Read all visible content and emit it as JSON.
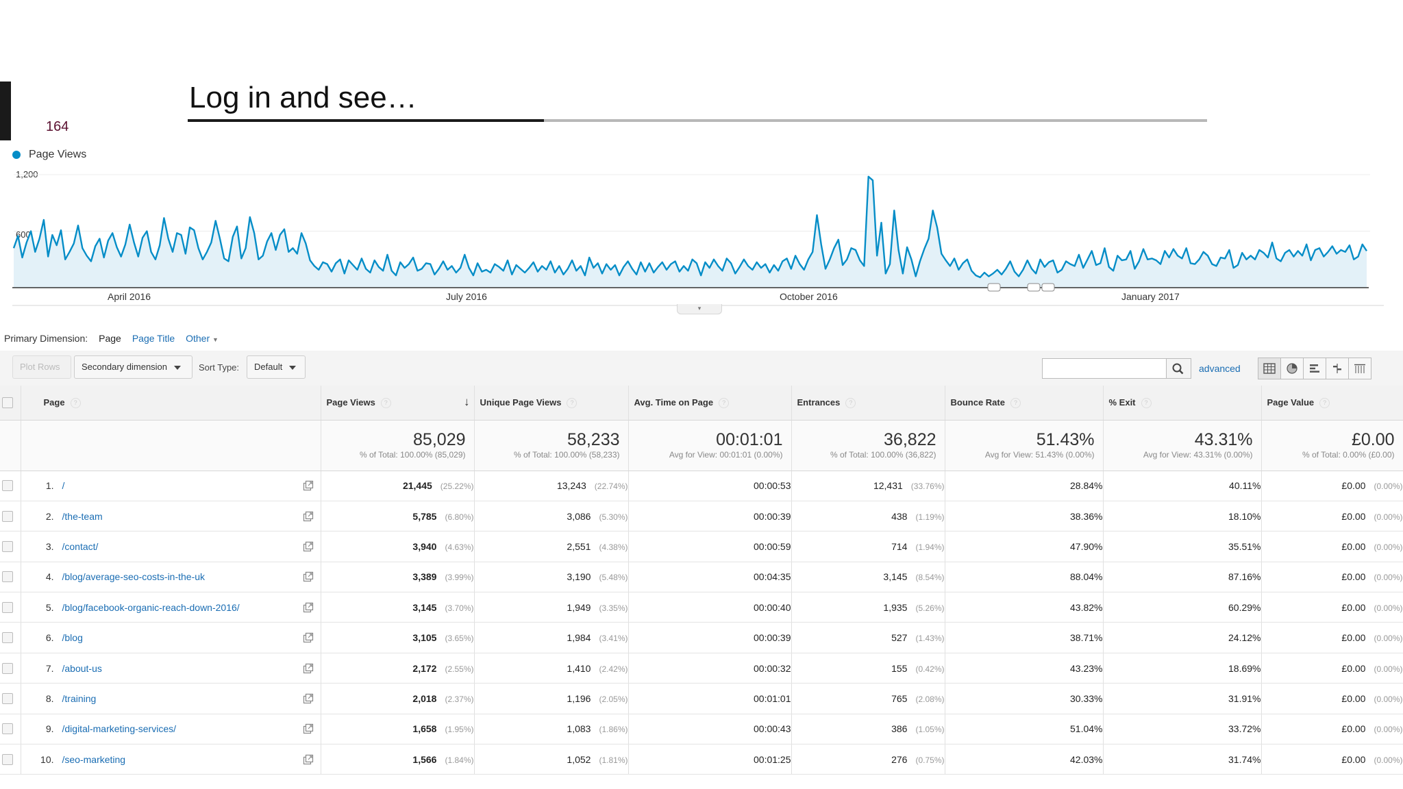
{
  "slide": {
    "number": "164",
    "title": "Log in and see…"
  },
  "chart_data": {
    "type": "line",
    "legend": [
      "Page Views"
    ],
    "series": [
      {
        "name": "Page Views",
        "color": "#058dc7",
        "values": [
          420,
          550,
          320,
          480,
          600,
          380,
          520,
          720,
          330,
          560,
          450,
          610,
          300,
          380,
          470,
          660,
          420,
          340,
          280,
          440,
          520,
          320,
          500,
          580,
          430,
          330,
          460,
          670,
          480,
          330,
          530,
          600,
          380,
          300,
          450,
          740,
          520,
          380,
          580,
          560,
          360,
          640,
          610,
          420,
          300,
          380,
          480,
          710,
          520,
          310,
          280,
          540,
          650,
          310,
          420,
          750,
          580,
          300,
          340,
          490,
          580,
          400,
          560,
          620,
          380,
          420,
          360,
          580,
          470,
          290,
          230,
          190,
          270,
          250,
          170,
          260,
          300,
          150,
          290,
          240,
          190,
          310,
          200,
          160,
          290,
          220,
          180,
          350,
          180,
          130,
          270,
          210,
          250,
          320,
          180,
          200,
          260,
          250,
          140,
          200,
          280,
          190,
          230,
          160,
          210,
          350,
          210,
          130,
          260,
          170,
          190,
          160,
          250,
          220,
          180,
          290,
          140,
          240,
          200,
          160,
          210,
          270,
          170,
          230,
          190,
          280,
          160,
          230,
          140,
          200,
          290,
          180,
          230,
          130,
          320,
          210,
          260,
          150,
          250,
          190,
          240,
          130,
          220,
          280,
          200,
          140,
          270,
          170,
          260,
          160,
          220,
          270,
          190,
          250,
          280,
          170,
          230,
          180,
          300,
          260,
          130,
          270,
          210,
          300,
          230,
          180,
          310,
          260,
          150,
          220,
          300,
          230,
          190,
          270,
          210,
          250,
          160,
          240,
          180,
          280,
          310,
          200,
          340,
          250,
          190,
          300,
          380,
          770,
          460,
          200,
          300,
          420,
          510,
          240,
          300,
          420,
          400,
          290,
          230,
          1180,
          1140,
          340,
          690,
          150,
          250,
          820,
          400,
          150,
          430,
          300,
          120,
          280,
          410,
          520,
          820,
          640,
          360,
          290,
          230,
          310,
          190,
          260,
          300,
          180,
          130,
          110,
          160,
          120,
          150,
          190,
          140,
          200,
          280,
          170,
          120,
          190,
          290,
          200,
          150,
          300,
          220,
          270,
          290,
          160,
          190,
          280,
          250,
          230,
          350,
          210,
          300,
          390,
          240,
          260,
          420,
          220,
          180,
          340,
          290,
          300,
          390,
          200,
          280,
          410,
          300,
          310,
          290,
          250,
          390,
          320,
          410,
          340,
          310,
          420,
          260,
          250,
          300,
          380,
          340,
          250,
          230,
          320,
          310,
          400,
          210,
          240,
          370,
          300,
          340,
          300,
          400,
          370,
          320,
          480,
          310,
          280,
          370,
          400,
          330,
          390,
          340,
          460,
          290,
          400,
          420,
          330,
          380,
          440,
          360,
          400,
          380,
          450,
          300,
          330,
          460,
          390
        ]
      }
    ],
    "ylim": [
      0,
      1200
    ],
    "yticks": [
      "1,200",
      "600"
    ],
    "xticks": [
      "April 2016",
      "July 2016",
      "October 2016",
      "January 2017"
    ],
    "grid": true
  },
  "controls": {
    "primary_dimension_label": "Primary Dimension:",
    "primary_page": "Page",
    "primary_page_title": "Page Title",
    "primary_other": "Other",
    "plot_rows": "Plot Rows",
    "secondary_dimension": "Secondary dimension",
    "sort_type_label": "Sort Type:",
    "sort_type_value": "Default",
    "search_placeholder": "",
    "advanced": "advanced"
  },
  "table": {
    "headers": {
      "page": "Page",
      "page_views": "Page Views",
      "unique_page_views": "Unique Page Views",
      "avg_time": "Avg. Time on Page",
      "entrances": "Entrances",
      "bounce_rate": "Bounce Rate",
      "exit": "% Exit",
      "page_value": "Page Value"
    },
    "help_mark": "?",
    "sort_arrow": "↓",
    "totals": {
      "page_views": {
        "value": "85,029",
        "sub": "% of Total: 100.00% (85,029)"
      },
      "unique_page_views": {
        "value": "58,233",
        "sub": "% of Total: 100.00% (58,233)"
      },
      "avg_time": {
        "value": "00:01:01",
        "sub": "Avg for View: 00:01:01 (0.00%)"
      },
      "entrances": {
        "value": "36,822",
        "sub": "% of Total: 100.00% (36,822)"
      },
      "bounce_rate": {
        "value": "51.43%",
        "sub": "Avg for View: 51.43% (0.00%)"
      },
      "exit": {
        "value": "43.31%",
        "sub": "Avg for View: 43.31% (0.00%)"
      },
      "page_value": {
        "value": "£0.00",
        "sub": "% of Total: 0.00% (£0.00)"
      }
    },
    "rows": [
      {
        "num": "1.",
        "page": "/",
        "pv": "21,445",
        "pv_pct": "(25.22%)",
        "upv": "13,243",
        "upv_pct": "(22.74%)",
        "time": "00:00:53",
        "ent": "12,431",
        "ent_pct": "(33.76%)",
        "bounce": "28.84%",
        "exit": "40.11%",
        "value": "£0.00",
        "value_pct": "(0.00%)"
      },
      {
        "num": "2.",
        "page": "/the-team",
        "pv": "5,785",
        "pv_pct": "(6.80%)",
        "upv": "3,086",
        "upv_pct": "(5.30%)",
        "time": "00:00:39",
        "ent": "438",
        "ent_pct": "(1.19%)",
        "bounce": "38.36%",
        "exit": "18.10%",
        "value": "£0.00",
        "value_pct": "(0.00%)"
      },
      {
        "num": "3.",
        "page": "/contact/",
        "pv": "3,940",
        "pv_pct": "(4.63%)",
        "upv": "2,551",
        "upv_pct": "(4.38%)",
        "time": "00:00:59",
        "ent": "714",
        "ent_pct": "(1.94%)",
        "bounce": "47.90%",
        "exit": "35.51%",
        "value": "£0.00",
        "value_pct": "(0.00%)"
      },
      {
        "num": "4.",
        "page": "/blog/average-seo-costs-in-the-uk",
        "pv": "3,389",
        "pv_pct": "(3.99%)",
        "upv": "3,190",
        "upv_pct": "(5.48%)",
        "time": "00:04:35",
        "ent": "3,145",
        "ent_pct": "(8.54%)",
        "bounce": "88.04%",
        "exit": "87.16%",
        "value": "£0.00",
        "value_pct": "(0.00%)"
      },
      {
        "num": "5.",
        "page": "/blog/facebook-organic-reach-down-2016/",
        "pv": "3,145",
        "pv_pct": "(3.70%)",
        "upv": "1,949",
        "upv_pct": "(3.35%)",
        "time": "00:00:40",
        "ent": "1,935",
        "ent_pct": "(5.26%)",
        "bounce": "43.82%",
        "exit": "60.29%",
        "value": "£0.00",
        "value_pct": "(0.00%)"
      },
      {
        "num": "6.",
        "page": "/blog",
        "pv": "3,105",
        "pv_pct": "(3.65%)",
        "upv": "1,984",
        "upv_pct": "(3.41%)",
        "time": "00:00:39",
        "ent": "527",
        "ent_pct": "(1.43%)",
        "bounce": "38.71%",
        "exit": "24.12%",
        "value": "£0.00",
        "value_pct": "(0.00%)"
      },
      {
        "num": "7.",
        "page": "/about-us",
        "pv": "2,172",
        "pv_pct": "(2.55%)",
        "upv": "1,410",
        "upv_pct": "(2.42%)",
        "time": "00:00:32",
        "ent": "155",
        "ent_pct": "(0.42%)",
        "bounce": "43.23%",
        "exit": "18.69%",
        "value": "£0.00",
        "value_pct": "(0.00%)"
      },
      {
        "num": "8.",
        "page": "/training",
        "pv": "2,018",
        "pv_pct": "(2.37%)",
        "upv": "1,196",
        "upv_pct": "(2.05%)",
        "time": "00:01:01",
        "ent": "765",
        "ent_pct": "(2.08%)",
        "bounce": "30.33%",
        "exit": "31.91%",
        "value": "£0.00",
        "value_pct": "(0.00%)"
      },
      {
        "num": "9.",
        "page": "/digital-marketing-services/",
        "pv": "1,658",
        "pv_pct": "(1.95%)",
        "upv": "1,083",
        "upv_pct": "(1.86%)",
        "time": "00:00:43",
        "ent": "386",
        "ent_pct": "(1.05%)",
        "bounce": "51.04%",
        "exit": "33.72%",
        "value": "£0.00",
        "value_pct": "(0.00%)"
      },
      {
        "num": "10.",
        "page": "/seo-marketing",
        "pv": "1,566",
        "pv_pct": "(1.84%)",
        "upv": "1,052",
        "upv_pct": "(1.81%)",
        "time": "00:01:25",
        "ent": "276",
        "ent_pct": "(0.75%)",
        "bounce": "42.03%",
        "exit": "31.74%",
        "value": "£0.00",
        "value_pct": "(0.00%)"
      }
    ]
  }
}
